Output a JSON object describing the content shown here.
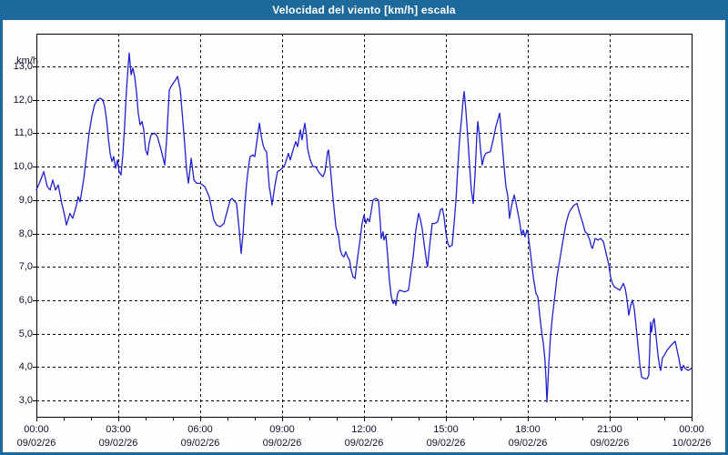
{
  "window": {
    "title": "Velocidad del viento [km/h] escala"
  },
  "colors": {
    "frame": "#1d699c",
    "title_text": "#ffffff",
    "plot_background": "#fdfefd",
    "grid": "#000000",
    "axis_text": "#10102c",
    "series_line": "#2121cd"
  },
  "chart_data": {
    "type": "line",
    "title": "Velocidad del viento [km/h] escala",
    "ylabel": "km/h",
    "xlabel": "",
    "ylim": [
      3,
      14
    ],
    "xlim_hours": [
      0,
      24
    ],
    "grid": "dashed",
    "legend": "none",
    "y_ticks": [
      {
        "value": 13,
        "label": "13,0"
      },
      {
        "value": 12,
        "label": "12,0"
      },
      {
        "value": 11,
        "label": "11,0"
      },
      {
        "value": 10,
        "label": "10,0"
      },
      {
        "value": 9,
        "label": "9,0"
      },
      {
        "value": 8,
        "label": "8,0"
      },
      {
        "value": 7,
        "label": "7,0"
      },
      {
        "value": 6,
        "label": "6,0"
      },
      {
        "value": 5,
        "label": "5,0"
      },
      {
        "value": 4,
        "label": "4,0"
      },
      {
        "value": 3,
        "label": "3,0"
      }
    ],
    "x_ticks": [
      {
        "hour": 0,
        "time": "00:00",
        "date": "09/02/26"
      },
      {
        "hour": 3,
        "time": "03:00",
        "date": "09/02/26"
      },
      {
        "hour": 6,
        "time": "06:00",
        "date": "09/02/26"
      },
      {
        "hour": 9,
        "time": "09:00",
        "date": "09/02/26"
      },
      {
        "hour": 12,
        "time": "12:00",
        "date": "09/02/26"
      },
      {
        "hour": 15,
        "time": "15:00",
        "date": "09/02/26"
      },
      {
        "hour": 18,
        "time": "18:00",
        "date": "09/02/26"
      },
      {
        "hour": 21,
        "time": "21:00",
        "date": "09/02/26"
      },
      {
        "hour": 24,
        "time": "00:00",
        "date": "10/02/26"
      }
    ],
    "minor_x_tick_every_hours": 1,
    "series": [
      {
        "name": "Velocidad del viento [km/h]",
        "color": "#2121cd",
        "points": [
          [
            0.0,
            9.3
          ],
          [
            0.13,
            9.55
          ],
          [
            0.27,
            9.85
          ],
          [
            0.4,
            9.4
          ],
          [
            0.5,
            9.3
          ],
          [
            0.6,
            9.6
          ],
          [
            0.7,
            9.3
          ],
          [
            0.8,
            9.45
          ],
          [
            0.93,
            8.9
          ],
          [
            1.03,
            8.55
          ],
          [
            1.1,
            8.25
          ],
          [
            1.23,
            8.6
          ],
          [
            1.33,
            8.45
          ],
          [
            1.47,
            8.85
          ],
          [
            1.53,
            9.1
          ],
          [
            1.6,
            8.95
          ],
          [
            1.73,
            9.6
          ],
          [
            1.83,
            10.3
          ],
          [
            1.93,
            11.0
          ],
          [
            2.03,
            11.5
          ],
          [
            2.13,
            11.85
          ],
          [
            2.23,
            12.0
          ],
          [
            2.33,
            12.05
          ],
          [
            2.43,
            12.0
          ],
          [
            2.5,
            11.8
          ],
          [
            2.57,
            11.4
          ],
          [
            2.63,
            10.9
          ],
          [
            2.7,
            10.4
          ],
          [
            2.77,
            10.15
          ],
          [
            2.83,
            10.3
          ],
          [
            2.9,
            9.95
          ],
          [
            2.97,
            10.2
          ],
          [
            3.03,
            9.85
          ],
          [
            3.1,
            9.75
          ],
          [
            3.17,
            10.4
          ],
          [
            3.23,
            11.2
          ],
          [
            3.3,
            12.3
          ],
          [
            3.37,
            13.1
          ],
          [
            3.4,
            13.4
          ],
          [
            3.47,
            12.75
          ],
          [
            3.53,
            12.95
          ],
          [
            3.6,
            12.7
          ],
          [
            3.67,
            12.2
          ],
          [
            3.73,
            11.6
          ],
          [
            3.8,
            11.25
          ],
          [
            3.87,
            11.35
          ],
          [
            3.93,
            11.1
          ],
          [
            4.0,
            10.5
          ],
          [
            4.07,
            10.35
          ],
          [
            4.13,
            10.7
          ],
          [
            4.2,
            10.95
          ],
          [
            4.33,
            11.0
          ],
          [
            4.43,
            10.9
          ],
          [
            4.57,
            10.5
          ],
          [
            4.7,
            10.05
          ],
          [
            4.77,
            10.8
          ],
          [
            4.87,
            12.3
          ],
          [
            4.97,
            12.45
          ],
          [
            5.1,
            12.6
          ],
          [
            5.17,
            12.7
          ],
          [
            5.27,
            12.3
          ],
          [
            5.33,
            11.7
          ],
          [
            5.43,
            10.7
          ],
          [
            5.5,
            9.9
          ],
          [
            5.57,
            9.5
          ],
          [
            5.67,
            10.25
          ],
          [
            5.77,
            9.6
          ],
          [
            5.87,
            9.5
          ],
          [
            6.0,
            9.5
          ],
          [
            6.17,
            9.4
          ],
          [
            6.33,
            9.1
          ],
          [
            6.5,
            8.4
          ],
          [
            6.6,
            8.25
          ],
          [
            6.73,
            8.2
          ],
          [
            6.87,
            8.3
          ],
          [
            7.0,
            8.7
          ],
          [
            7.1,
            9.0
          ],
          [
            7.17,
            9.05
          ],
          [
            7.27,
            8.95
          ],
          [
            7.33,
            8.9
          ],
          [
            7.43,
            8.1
          ],
          [
            7.5,
            7.4
          ],
          [
            7.57,
            8.0
          ],
          [
            7.63,
            8.8
          ],
          [
            7.7,
            9.5
          ],
          [
            7.77,
            10.0
          ],
          [
            7.83,
            10.3
          ],
          [
            7.93,
            10.35
          ],
          [
            8.0,
            10.3
          ],
          [
            8.1,
            10.9
          ],
          [
            8.17,
            11.3
          ],
          [
            8.23,
            10.95
          ],
          [
            8.3,
            10.65
          ],
          [
            8.37,
            10.5
          ],
          [
            8.43,
            10.45
          ],
          [
            8.53,
            9.4
          ],
          [
            8.6,
            9.05
          ],
          [
            8.63,
            8.85
          ],
          [
            8.73,
            9.4
          ],
          [
            8.83,
            9.85
          ],
          [
            8.93,
            9.9
          ],
          [
            9.0,
            9.95
          ],
          [
            9.1,
            10.05
          ],
          [
            9.23,
            10.4
          ],
          [
            9.3,
            10.2
          ],
          [
            9.4,
            10.5
          ],
          [
            9.5,
            10.75
          ],
          [
            9.57,
            10.6
          ],
          [
            9.67,
            11.1
          ],
          [
            9.73,
            10.8
          ],
          [
            9.83,
            11.3
          ],
          [
            9.9,
            10.9
          ],
          [
            9.93,
            10.55
          ],
          [
            10.03,
            10.2
          ],
          [
            10.13,
            10.0
          ],
          [
            10.23,
            10.0
          ],
          [
            10.33,
            9.85
          ],
          [
            10.43,
            9.75
          ],
          [
            10.5,
            9.7
          ],
          [
            10.57,
            9.85
          ],
          [
            10.67,
            10.45
          ],
          [
            10.7,
            10.5
          ],
          [
            10.77,
            9.95
          ],
          [
            10.87,
            9.0
          ],
          [
            10.97,
            8.2
          ],
          [
            11.07,
            7.9
          ],
          [
            11.13,
            7.5
          ],
          [
            11.2,
            7.35
          ],
          [
            11.27,
            7.3
          ],
          [
            11.33,
            7.45
          ],
          [
            11.4,
            7.3
          ],
          [
            11.47,
            7.2
          ],
          [
            11.53,
            6.9
          ],
          [
            11.6,
            6.7
          ],
          [
            11.67,
            6.65
          ],
          [
            11.77,
            7.3
          ],
          [
            11.87,
            7.9
          ],
          [
            11.93,
            8.3
          ],
          [
            12.0,
            8.55
          ],
          [
            12.07,
            8.3
          ],
          [
            12.13,
            8.45
          ],
          [
            12.2,
            8.35
          ],
          [
            12.33,
            9.0
          ],
          [
            12.43,
            9.05
          ],
          [
            12.53,
            9.0
          ],
          [
            12.6,
            8.3
          ],
          [
            12.63,
            7.85
          ],
          [
            12.7,
            8.05
          ],
          [
            12.73,
            7.8
          ],
          [
            12.8,
            7.95
          ],
          [
            12.87,
            7.3
          ],
          [
            12.93,
            6.6
          ],
          [
            13.0,
            6.1
          ],
          [
            13.07,
            5.9
          ],
          [
            13.13,
            6.0
          ],
          [
            13.17,
            5.85
          ],
          [
            13.23,
            6.2
          ],
          [
            13.3,
            6.3
          ],
          [
            13.5,
            6.25
          ],
          [
            13.63,
            6.3
          ],
          [
            13.73,
            6.9
          ],
          [
            13.8,
            7.3
          ],
          [
            13.9,
            8.1
          ],
          [
            14.0,
            8.6
          ],
          [
            14.07,
            8.4
          ],
          [
            14.13,
            8.15
          ],
          [
            14.2,
            7.7
          ],
          [
            14.3,
            7.1
          ],
          [
            14.33,
            7.0
          ],
          [
            14.4,
            7.6
          ],
          [
            14.5,
            8.3
          ],
          [
            14.6,
            8.3
          ],
          [
            14.7,
            8.35
          ],
          [
            14.8,
            8.7
          ],
          [
            14.87,
            8.75
          ],
          [
            14.93,
            8.5
          ],
          [
            15.0,
            8.0
          ],
          [
            15.07,
            7.7
          ],
          [
            15.13,
            7.6
          ],
          [
            15.23,
            7.65
          ],
          [
            15.3,
            8.3
          ],
          [
            15.37,
            9.0
          ],
          [
            15.43,
            9.9
          ],
          [
            15.5,
            10.8
          ],
          [
            15.57,
            11.4
          ],
          [
            15.63,
            12.0
          ],
          [
            15.67,
            12.25
          ],
          [
            15.73,
            11.7
          ],
          [
            15.8,
            10.9
          ],
          [
            15.87,
            10.0
          ],
          [
            15.93,
            9.3
          ],
          [
            16.0,
            8.9
          ],
          [
            16.07,
            9.8
          ],
          [
            16.13,
            10.9
          ],
          [
            16.17,
            11.35
          ],
          [
            16.23,
            10.9
          ],
          [
            16.27,
            10.5
          ],
          [
            16.33,
            10.05
          ],
          [
            16.4,
            10.3
          ],
          [
            16.47,
            10.4
          ],
          [
            16.63,
            10.45
          ],
          [
            16.73,
            10.8
          ],
          [
            16.83,
            11.2
          ],
          [
            16.97,
            11.6
          ],
          [
            17.07,
            10.6
          ],
          [
            17.13,
            10.0
          ],
          [
            17.2,
            9.4
          ],
          [
            17.27,
            9.1
          ],
          [
            17.33,
            8.45
          ],
          [
            17.4,
            8.8
          ],
          [
            17.5,
            9.15
          ],
          [
            17.57,
            8.9
          ],
          [
            17.7,
            8.35
          ],
          [
            17.77,
            7.95
          ],
          [
            17.83,
            8.1
          ],
          [
            17.9,
            7.9
          ],
          [
            17.97,
            8.1
          ],
          [
            18.0,
            8.05
          ],
          [
            18.1,
            7.4
          ],
          [
            18.2,
            6.7
          ],
          [
            18.3,
            6.2
          ],
          [
            18.37,
            6.1
          ],
          [
            18.43,
            5.6
          ],
          [
            18.5,
            5.1
          ],
          [
            18.57,
            4.7
          ],
          [
            18.63,
            4.2
          ],
          [
            18.67,
            3.6
          ],
          [
            18.7,
            2.95
          ],
          [
            18.73,
            3.4
          ],
          [
            18.77,
            4.1
          ],
          [
            18.83,
            4.9
          ],
          [
            18.9,
            5.5
          ],
          [
            19.0,
            6.2
          ],
          [
            19.07,
            6.7
          ],
          [
            19.13,
            7.0
          ],
          [
            19.27,
            7.7
          ],
          [
            19.4,
            8.3
          ],
          [
            19.5,
            8.6
          ],
          [
            19.6,
            8.75
          ],
          [
            19.7,
            8.85
          ],
          [
            19.8,
            8.9
          ],
          [
            19.9,
            8.6
          ],
          [
            20.0,
            8.35
          ],
          [
            20.1,
            8.05
          ],
          [
            20.17,
            8.0
          ],
          [
            20.27,
            7.8
          ],
          [
            20.33,
            7.6
          ],
          [
            20.37,
            7.55
          ],
          [
            20.47,
            7.85
          ],
          [
            20.57,
            7.8
          ],
          [
            20.67,
            7.85
          ],
          [
            20.77,
            7.75
          ],
          [
            20.87,
            7.4
          ],
          [
            20.97,
            7.05
          ],
          [
            21.03,
            6.7
          ],
          [
            21.1,
            6.5
          ],
          [
            21.17,
            6.4
          ],
          [
            21.27,
            6.35
          ],
          [
            21.37,
            6.3
          ],
          [
            21.5,
            6.5
          ],
          [
            21.57,
            6.35
          ],
          [
            21.63,
            6.05
          ],
          [
            21.7,
            5.55
          ],
          [
            21.77,
            5.85
          ],
          [
            21.83,
            6.0
          ],
          [
            21.9,
            5.75
          ],
          [
            21.97,
            5.2
          ],
          [
            22.03,
            4.7
          ],
          [
            22.1,
            4.1
          ],
          [
            22.17,
            3.7
          ],
          [
            22.27,
            3.65
          ],
          [
            22.37,
            3.65
          ],
          [
            22.43,
            3.75
          ],
          [
            22.47,
            4.6
          ],
          [
            22.5,
            5.35
          ],
          [
            22.53,
            5.05
          ],
          [
            22.6,
            5.4
          ],
          [
            22.63,
            5.45
          ],
          [
            22.7,
            4.9
          ],
          [
            22.77,
            4.35
          ],
          [
            22.83,
            4.0
          ],
          [
            22.87,
            3.9
          ],
          [
            22.93,
            4.27
          ],
          [
            23.0,
            4.35
          ],
          [
            23.1,
            4.5
          ],
          [
            23.27,
            4.67
          ],
          [
            23.4,
            4.77
          ],
          [
            23.53,
            4.27
          ],
          [
            23.6,
            3.95
          ],
          [
            23.63,
            3.89
          ],
          [
            23.7,
            4.05
          ],
          [
            23.77,
            3.95
          ],
          [
            23.87,
            3.9
          ],
          [
            23.93,
            3.92
          ],
          [
            24.0,
            3.97
          ]
        ]
      }
    ]
  }
}
